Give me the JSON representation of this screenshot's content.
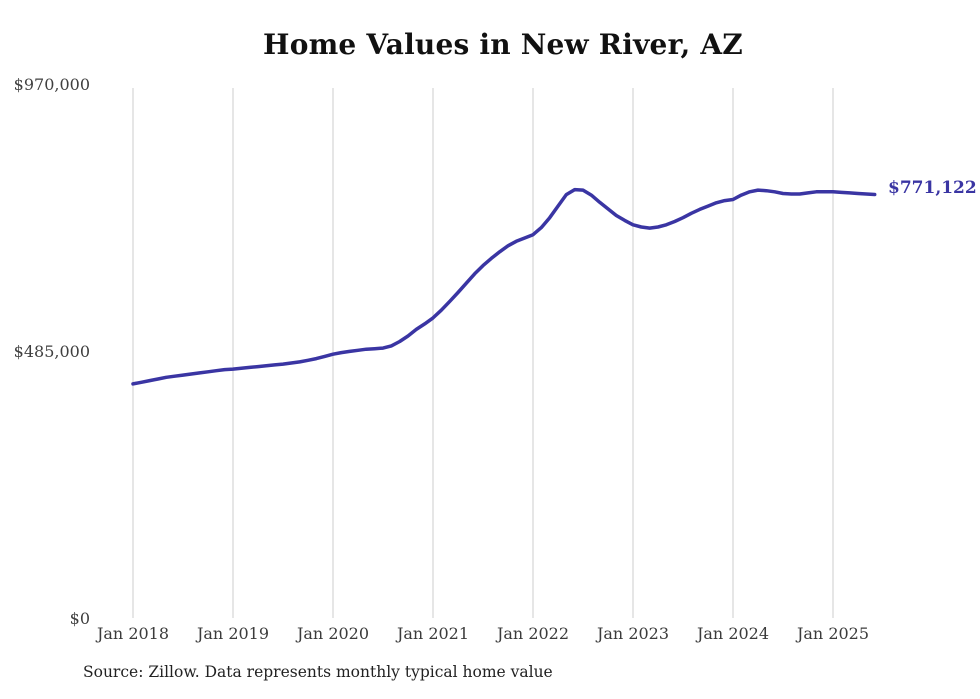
{
  "title": "Home Values in New River, AZ",
  "source_note": "Source: Zillow. Data represents monthly typical home value",
  "colors": {
    "line": "#3a35a3",
    "end_label": "#3a35a3",
    "grid": "#cccccc",
    "title_text": "#111111",
    "axis_text": "#3b3b3b",
    "source_text": "#222222",
    "background": "#ffffff"
  },
  "chart_data": {
    "type": "line",
    "title": "Home Values in New River, AZ",
    "series_name": "Monthly typical home value",
    "legend": "none",
    "grid": "vertical-only",
    "xlabel": "",
    "ylabel": "",
    "ylim": [
      0,
      970000
    ],
    "y_ticks": [
      {
        "label": "$970,000",
        "value": 970000
      },
      {
        "label": "$485,000",
        "value": 485000
      },
      {
        "label": "$0",
        "value": 0
      }
    ],
    "x_tick_labels": [
      "Jan 2018",
      "Jan 2019",
      "Jan 2020",
      "Jan 2021",
      "Jan 2022",
      "Jan 2023",
      "Jan 2024",
      "Jan 2025"
    ],
    "final_value": 771122,
    "final_value_label": "$771,122",
    "x": [
      "2018-01",
      "2018-02",
      "2018-03",
      "2018-04",
      "2018-05",
      "2018-06",
      "2018-07",
      "2018-08",
      "2018-09",
      "2018-10",
      "2018-11",
      "2018-12",
      "2019-01",
      "2019-02",
      "2019-03",
      "2019-04",
      "2019-05",
      "2019-06",
      "2019-07",
      "2019-08",
      "2019-09",
      "2019-10",
      "2019-11",
      "2019-12",
      "2020-01",
      "2020-02",
      "2020-03",
      "2020-04",
      "2020-05",
      "2020-06",
      "2020-07",
      "2020-08",
      "2020-09",
      "2020-10",
      "2020-11",
      "2020-12",
      "2021-01",
      "2021-02",
      "2021-03",
      "2021-04",
      "2021-05",
      "2021-06",
      "2021-07",
      "2021-08",
      "2021-09",
      "2021-10",
      "2021-11",
      "2021-12",
      "2022-01",
      "2022-02",
      "2022-03",
      "2022-04",
      "2022-05",
      "2022-06",
      "2022-07",
      "2022-08",
      "2022-09",
      "2022-10",
      "2022-11",
      "2022-12",
      "2023-01",
      "2023-02",
      "2023-03",
      "2023-04",
      "2023-05",
      "2023-06",
      "2023-07",
      "2023-08",
      "2023-09",
      "2023-10",
      "2023-11",
      "2023-12",
      "2024-01",
      "2024-02",
      "2024-03",
      "2024-04",
      "2024-05",
      "2024-06",
      "2024-07",
      "2024-08",
      "2024-09",
      "2024-10",
      "2024-11",
      "2024-12",
      "2025-01",
      "2025-02",
      "2025-03",
      "2025-04",
      "2025-05",
      "2025-06"
    ],
    "values": [
      427000,
      430000,
      433000,
      436000,
      439000,
      441000,
      443000,
      445000,
      447000,
      449000,
      451000,
      453000,
      454000,
      455500,
      457000,
      458500,
      460000,
      461500,
      463000,
      465000,
      467000,
      470000,
      473000,
      477000,
      481000,
      484000,
      486000,
      488000,
      490000,
      491000,
      492000,
      496000,
      504000,
      514000,
      526000,
      536000,
      547000,
      561000,
      577000,
      593000,
      610000,
      627000,
      642000,
      655000,
      667000,
      678000,
      686000,
      692000,
      698000,
      711000,
      729000,
      750000,
      771000,
      780000,
      779000,
      770000,
      757000,
      745000,
      733000,
      724000,
      716000,
      712000,
      710000,
      712000,
      716000,
      722000,
      729000,
      737000,
      744000,
      750000,
      756000,
      760000,
      762000,
      770000,
      776000,
      779000,
      778000,
      776000,
      773000,
      772000,
      772000,
      774000,
      776000,
      776000,
      776000,
      775000,
      774000,
      773000,
      772000,
      771122
    ]
  }
}
